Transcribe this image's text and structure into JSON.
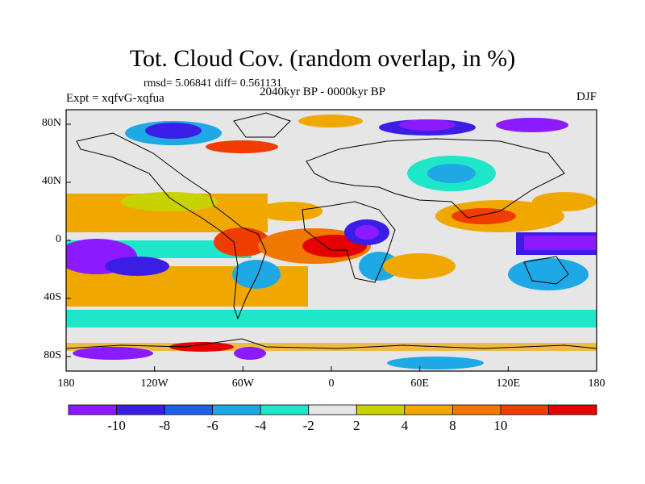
{
  "title": "Tot. Cloud Cov. (random overlap, in %)",
  "stats": "rmsd= 5.06841 diff= 0.561131",
  "expt": "Expt = xqfvG-xqfua",
  "period": "2040kyr BP - 0000kyr BP",
  "season": "DJF",
  "map": {
    "lon_range": [
      -180,
      180
    ],
    "lat_range": [
      -90,
      90
    ],
    "projection": "cylindrical equidistant",
    "land_outline_color": "#000000",
    "x_ticks": [
      "180",
      "120W",
      "60W",
      "0",
      "60E",
      "120E",
      "180"
    ],
    "y_ticks": [
      "80N",
      "40N",
      "0",
      "40S",
      "80S"
    ],
    "field": "total cloud cover anomaly (%)"
  },
  "colorbar": {
    "labels": [
      "-10",
      "-8",
      "-6",
      "-4",
      "-2",
      "2",
      "4",
      "8",
      "10"
    ],
    "colors": [
      "#8c1aff",
      "#3a1ee6",
      "#1e5fe6",
      "#1ea8e6",
      "#1ee6c8",
      "#e6e6e6",
      "#c8d200",
      "#f0a800",
      "#f07800",
      "#f03c00",
      "#e60000"
    ]
  }
}
